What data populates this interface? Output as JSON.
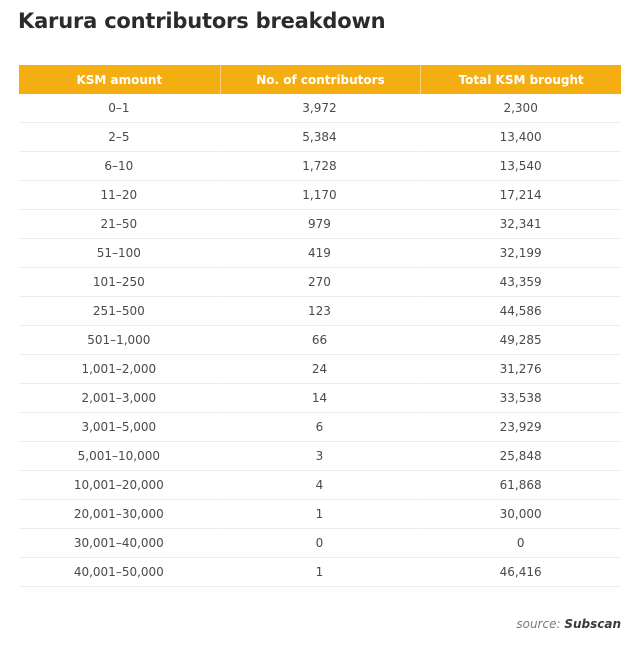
{
  "title": "Karura contributors breakdown",
  "table": {
    "headers": [
      "KSM amount",
      "No. of contributors",
      "Total KSM brought"
    ],
    "rows": [
      [
        "0–1",
        "3,972",
        "2,300"
      ],
      [
        "2–5",
        "5,384",
        "13,400"
      ],
      [
        "6–10",
        "1,728",
        "13,540"
      ],
      [
        "11–20",
        "1,170",
        "17,214"
      ],
      [
        "21–50",
        "979",
        "32,341"
      ],
      [
        "51–100",
        "419",
        "32,199"
      ],
      [
        "101–250",
        "270",
        "43,359"
      ],
      [
        "251–500",
        "123",
        "44,586"
      ],
      [
        "501–1,000",
        "66",
        "49,285"
      ],
      [
        "1,001–2,000",
        "24",
        "31,276"
      ],
      [
        "2,001–3,000",
        "14",
        "33,538"
      ],
      [
        "3,001–5,000",
        "6",
        "23,929"
      ],
      [
        "5,001–10,000",
        "3",
        "25,848"
      ],
      [
        "10,001–20,000",
        "4",
        "61,868"
      ],
      [
        "20,001–30,000",
        "1",
        "30,000"
      ],
      [
        "30,001–40,000",
        "0",
        "0"
      ],
      [
        "40,001–50,000",
        "1",
        "46,416"
      ]
    ]
  },
  "source": {
    "prefix": "source: ",
    "name": "Subscan"
  },
  "colors": {
    "header_bg": "#f5ae12",
    "header_text": "#ffffff"
  }
}
